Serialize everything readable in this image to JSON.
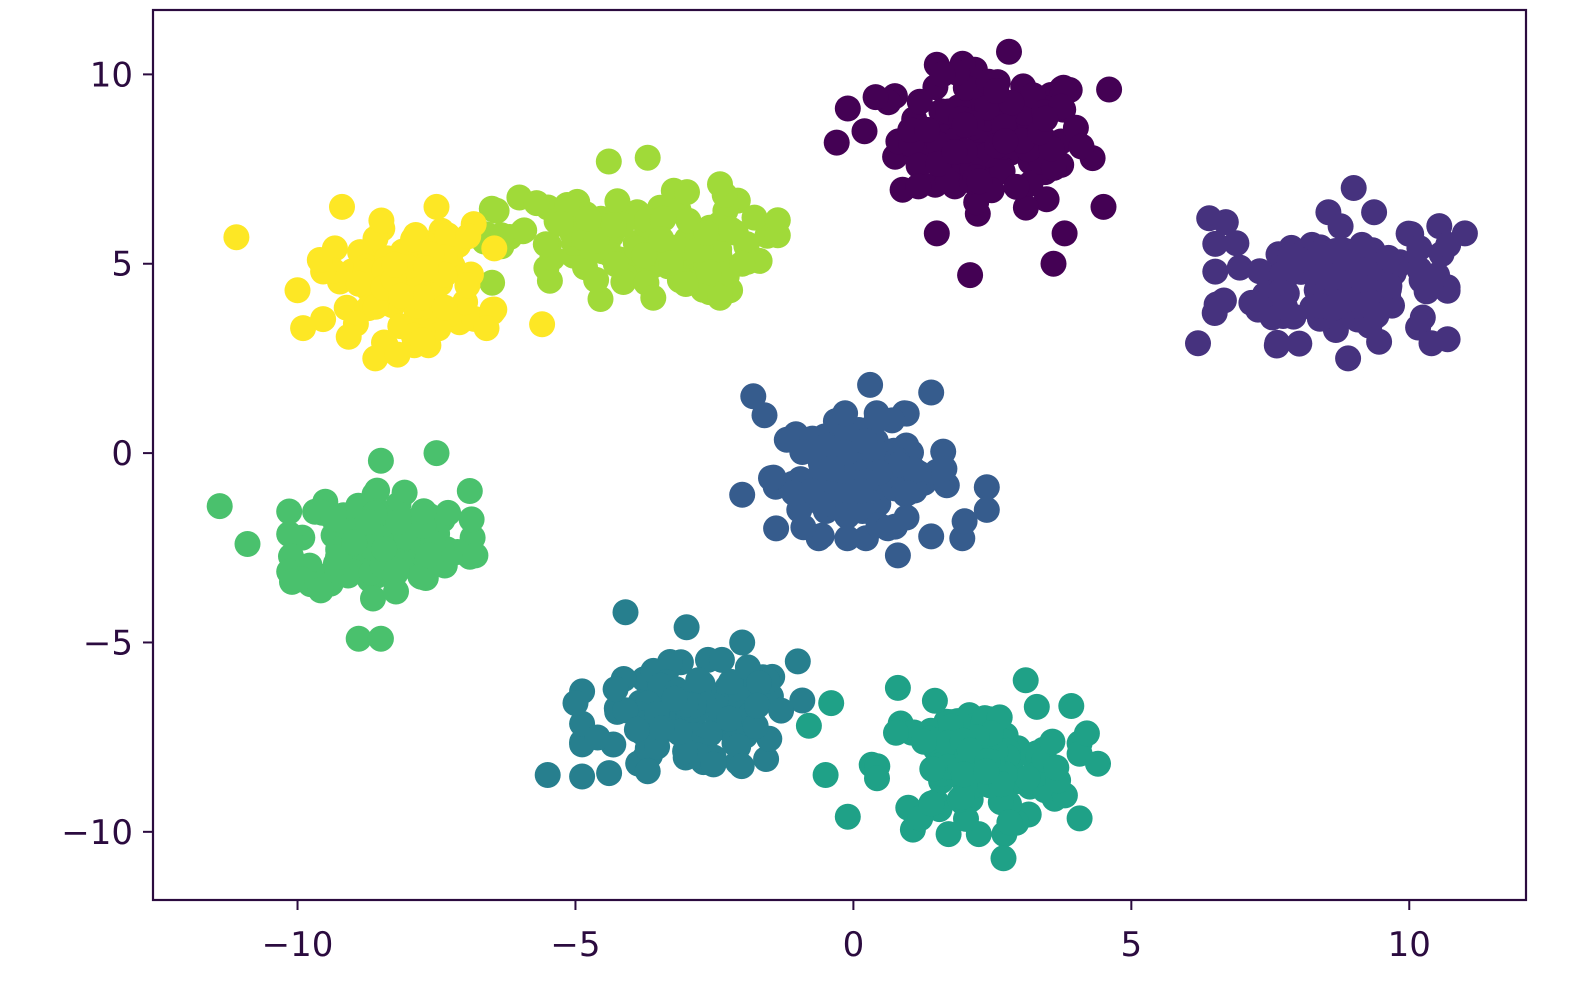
{
  "chart_data": {
    "type": "scatter",
    "title": "",
    "xlabel": "",
    "ylabel": "",
    "xlim": [
      -12.6,
      12.1
    ],
    "ylim": [
      -11.8,
      11.7
    ],
    "x_ticks": [
      {
        "value": -10,
        "label": "−10"
      },
      {
        "value": -5,
        "label": "−5"
      },
      {
        "value": 0,
        "label": "0"
      },
      {
        "value": 5,
        "label": "5"
      },
      {
        "value": 10,
        "label": "10"
      }
    ],
    "y_ticks": [
      {
        "value": 10,
        "label": "10"
      },
      {
        "value": 5,
        "label": "5"
      },
      {
        "value": 0,
        "label": "0"
      },
      {
        "value": -5,
        "label": "−5"
      },
      {
        "value": -10,
        "label": "−10"
      }
    ],
    "grid": false,
    "legend": "none",
    "colors": {
      "axis": "#2b0b3f",
      "cluster_0": "#440154",
      "cluster_1": "#46327e",
      "cluster_2": "#365c8d",
      "cluster_3": "#277f8e",
      "cluster_4": "#1fa187",
      "cluster_5": "#4ac16d",
      "cluster_6": "#a0da39",
      "cluster_7": "#fde725"
    },
    "clusters": [
      {
        "color": "#440154",
        "center": [
          2.5,
          8.3
        ],
        "spread": [
          0.85,
          0.9
        ],
        "count": 125,
        "outliers": [
          [
            -0.3,
            8.2
          ],
          [
            2.1,
            4.7
          ],
          [
            3.6,
            5.0
          ],
          [
            4.5,
            6.5
          ],
          [
            4.6,
            9.6
          ],
          [
            2.8,
            10.6
          ],
          [
            -0.1,
            9.1
          ],
          [
            1.5,
            5.8
          ],
          [
            0.4,
            9.4
          ],
          [
            3.8,
            5.8
          ],
          [
            1.6,
            10.0
          ],
          [
            0.2,
            8.5
          ]
        ]
      },
      {
        "color": "#46327e",
        "center": [
          8.6,
          4.6
        ],
        "spread": [
          0.95,
          0.8
        ],
        "count": 125,
        "outliers": [
          [
            6.2,
            2.9
          ],
          [
            6.4,
            6.2
          ],
          [
            11.0,
            5.8
          ],
          [
            10.4,
            2.9
          ],
          [
            9.0,
            7.0
          ],
          [
            6.5,
            3.7
          ],
          [
            10.5,
            4.7
          ],
          [
            6.7,
            6.1
          ],
          [
            8.9,
            2.5
          ],
          [
            10.7,
            5.5
          ]
        ]
      },
      {
        "color": "#365c8d",
        "center": [
          0.2,
          -0.6
        ],
        "spread": [
          0.8,
          0.75
        ],
        "count": 125,
        "outliers": [
          [
            -1.8,
            1.5
          ],
          [
            2.4,
            -0.9
          ],
          [
            2.4,
            -1.5
          ],
          [
            1.4,
            1.6
          ],
          [
            0.8,
            -2.7
          ],
          [
            -1.6,
            1.0
          ],
          [
            1.4,
            -2.2
          ],
          [
            2.0,
            -1.8
          ],
          [
            0.3,
            1.8
          ],
          [
            -2.0,
            -1.1
          ]
        ]
      },
      {
        "color": "#277f8e",
        "center": [
          -2.9,
          -7.0
        ],
        "spread": [
          0.9,
          0.7
        ],
        "count": 125,
        "outliers": [
          [
            -5.5,
            -8.5
          ],
          [
            -4.1,
            -4.2
          ],
          [
            -3.0,
            -4.6
          ],
          [
            -1.0,
            -5.5
          ],
          [
            -2.0,
            -5.0
          ],
          [
            -5.0,
            -6.6
          ],
          [
            -3.7,
            -8.4
          ],
          [
            -1.3,
            -6.8
          ]
        ]
      },
      {
        "color": "#1fa187",
        "center": [
          2.2,
          -8.3
        ],
        "spread": [
          0.85,
          0.8
        ],
        "count": 125,
        "outliers": [
          [
            -0.1,
            -9.6
          ],
          [
            4.4,
            -8.2
          ],
          [
            4.2,
            -7.4
          ],
          [
            3.1,
            -6.0
          ],
          [
            0.8,
            -6.2
          ],
          [
            2.7,
            -10.7
          ],
          [
            -0.5,
            -8.5
          ],
          [
            -0.8,
            -7.2
          ],
          [
            -0.4,
            -6.6
          ],
          [
            3.3,
            -6.7
          ]
        ]
      },
      {
        "color": "#4ac16d",
        "center": [
          -8.5,
          -2.3
        ],
        "spread": [
          0.75,
          0.7
        ],
        "count": 125,
        "outliers": [
          [
            -11.4,
            -1.4
          ],
          [
            -10.9,
            -2.4
          ],
          [
            -8.9,
            -4.9
          ],
          [
            -8.5,
            -4.9
          ],
          [
            -7.5,
            0.0
          ],
          [
            -6.9,
            -1.0
          ],
          [
            -8.5,
            -0.2
          ],
          [
            -10.1,
            -3.4
          ],
          [
            -6.8,
            -2.7
          ]
        ]
      },
      {
        "color": "#a0da39",
        "center": [
          -4.0,
          5.5
        ],
        "spread": [
          1.2,
          0.65
        ],
        "count": 125,
        "outliers": [
          [
            -2.4,
            7.1
          ],
          [
            -2.4,
            4.1
          ],
          [
            -2.0,
            5.0
          ],
          [
            -4.4,
            7.7
          ],
          [
            -3.6,
            4.1
          ],
          [
            -6.5,
            4.5
          ],
          [
            -3.7,
            7.8
          ],
          [
            -5.7,
            6.6
          ],
          [
            -2.2,
            5.9
          ]
        ]
      },
      {
        "color": "#fde725",
        "center": [
          -8.0,
          4.5
        ],
        "spread": [
          0.7,
          0.75
        ],
        "count": 125,
        "outliers": [
          [
            -11.1,
            5.7
          ],
          [
            -10.0,
            4.3
          ],
          [
            -9.9,
            3.3
          ],
          [
            -9.2,
            6.5
          ],
          [
            -8.6,
            2.5
          ],
          [
            -8.2,
            2.6
          ],
          [
            -5.6,
            3.4
          ],
          [
            -6.6,
            3.3
          ],
          [
            -7.5,
            6.5
          ],
          [
            -9.6,
            5.1
          ]
        ]
      }
    ]
  }
}
